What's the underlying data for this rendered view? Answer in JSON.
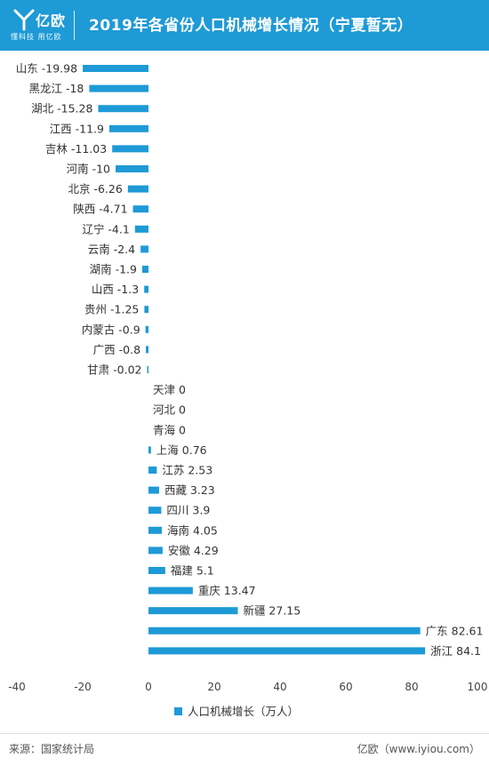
{
  "header": {
    "logo_text": "亿欧",
    "slogan": "懂科技 用亿欧",
    "title": "2019年各省份人口机械增长情况（宁夏暂无）"
  },
  "footer": {
    "source": "来源：国家统计局",
    "brand": "亿欧（www.iyiou.com）"
  },
  "colors": {
    "brand": "#1E9AD6",
    "bar": "#1E9AD6"
  },
  "chart_data": {
    "type": "bar",
    "orientation": "horizontal",
    "categories": [
      "山东",
      "黑龙江",
      "湖北",
      "江西",
      "吉林",
      "河南",
      "北京",
      "陕西",
      "辽宁",
      "云南",
      "湖南",
      "山西",
      "贵州",
      "内蒙古",
      "广西",
      "甘肃",
      "天津",
      "河北",
      "青海",
      "上海",
      "江苏",
      "西藏",
      "四川",
      "海南",
      "安徽",
      "福建",
      "重庆",
      "新疆",
      "广东",
      "浙江"
    ],
    "values": [
      -19.98,
      -18,
      -15.28,
      -11.9,
      -11.03,
      -10,
      -6.26,
      -4.71,
      -4.1,
      -2.4,
      -1.9,
      -1.3,
      -1.25,
      -0.9,
      -0.8,
      -0.02,
      0,
      0,
      0,
      0.76,
      2.53,
      3.23,
      3.9,
      4.05,
      4.29,
      5.1,
      13.47,
      27.15,
      82.61,
      84.1
    ],
    "value_labels": [
      "-19.98",
      "-18",
      "-15.28",
      "-11.9",
      "-11.03",
      "-10",
      "-6.26",
      "-4.71",
      "-4.1",
      "-2.4",
      "-1.9",
      "-1.3",
      "-1.25",
      "-0.9",
      "-0.8",
      "-0.02",
      "0",
      "0",
      "0",
      "0.76",
      "2.53",
      "3.23",
      "3.9",
      "4.05",
      "4.29",
      "5.1",
      "13.47",
      "27.15",
      "82.61",
      "84.1"
    ],
    "xlim": [
      -40,
      100
    ],
    "xticks": [
      -40,
      -20,
      0,
      20,
      40,
      60,
      80,
      100
    ],
    "series": [
      {
        "name": "人口机械增长（万人）"
      }
    ],
    "legend": "bottom-center",
    "grid": false
  }
}
